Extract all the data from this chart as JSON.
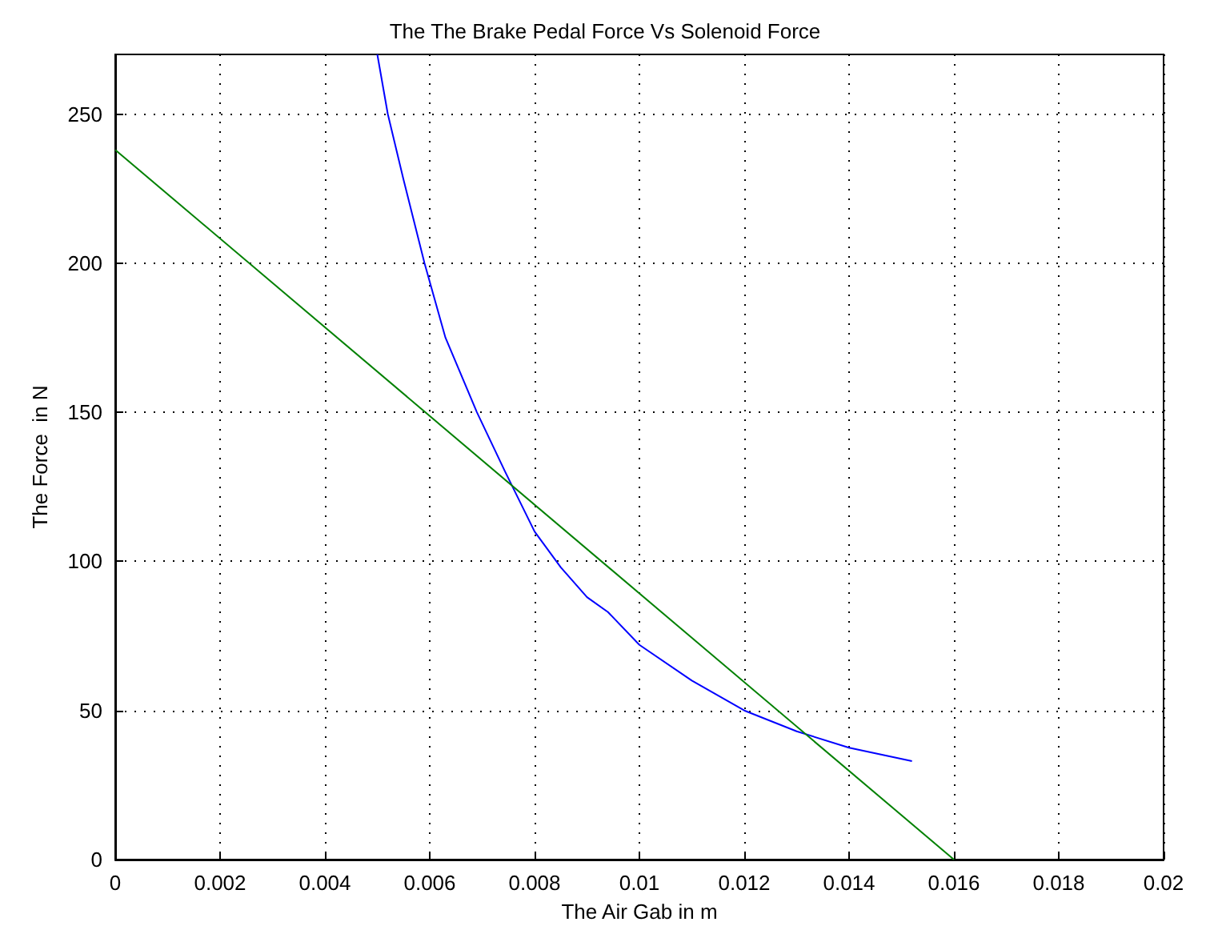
{
  "chart_data": {
    "type": "line",
    "title": "The The Brake Pedal Force Vs Solenoid Force",
    "xlabel": "The Air Gab in m",
    "ylabel": "The Force  in N",
    "series": [
      {
        "color": "#0000ff",
        "x": [
          0.005,
          0.0052,
          0.0055,
          0.0059,
          0.0063,
          0.0069,
          0.00744,
          0.008,
          0.0085,
          0.009,
          0.0094,
          0.01,
          0.011,
          0.012,
          0.013,
          0.014,
          0.0152
        ],
        "values": [
          270,
          250,
          228,
          200,
          175,
          150,
          130,
          110,
          98,
          88,
          83,
          72,
          60,
          50,
          43,
          37.5,
          33
        ]
      },
      {
        "color": "#008000",
        "x": [
          0,
          0.016
        ],
        "values": [
          238,
          0
        ]
      }
    ],
    "xlim": [
      0,
      0.02
    ],
    "xticks": [
      0,
      0.002,
      0.004,
      0.006,
      0.008,
      0.01,
      0.012,
      0.014,
      0.016,
      0.018,
      0.02
    ],
    "ylim": [
      0,
      270
    ],
    "yticks": [
      0,
      50,
      100,
      150,
      200,
      250
    ],
    "grid": true,
    "marker": "none",
    "line_style": "solid"
  }
}
